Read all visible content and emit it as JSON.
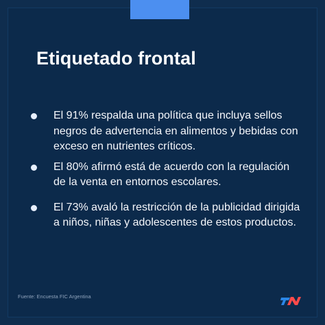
{
  "title": "Etiquetado frontal",
  "bullets": [
    "El 91% respalda una política que incluya sellos negros de advertencia en alimentos y bebidas con exceso en nutrientes críticos.",
    "El 80% afirmó está de acuerdo con la regulación de la venta en entornos escolares.",
    "El 73% avaló la restricción de la publicidad dirigida a niños, niñas y adolescentes de estos productos."
  ],
  "source": "Fuente: Encuesta FIC Argentina",
  "logo": {
    "name": "tn-logo",
    "colors": {
      "left": "#2b86e6",
      "right": "#ff4a4a"
    }
  },
  "colors": {
    "background": "#0f2d4e",
    "panel": "#0c2a4b",
    "accent": "#4c8ff0",
    "text": "#f5f7fb",
    "source": "#8ea2bb"
  }
}
